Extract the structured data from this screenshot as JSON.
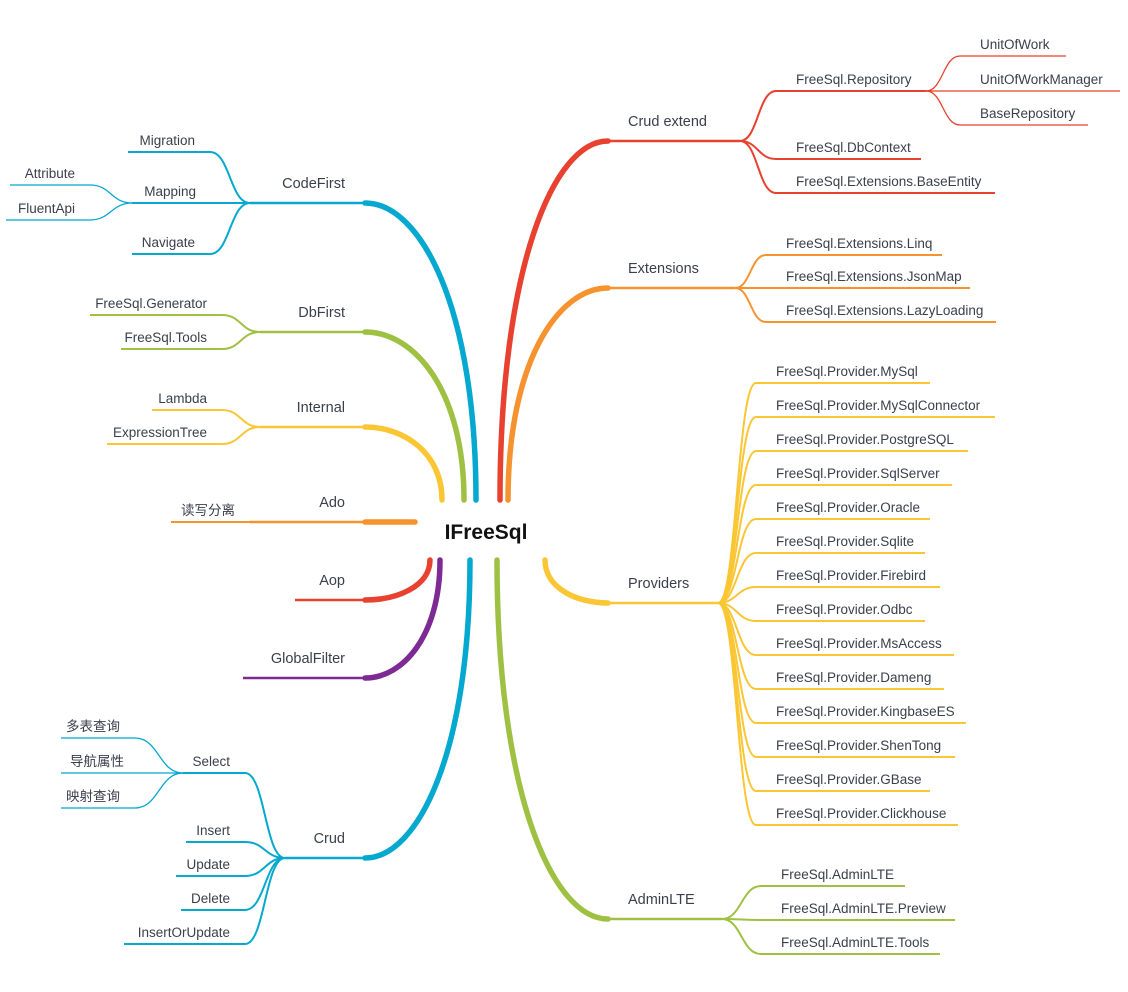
{
  "center": {
    "label": "IFreeSql"
  },
  "right": [
    {
      "label": "Crud extend",
      "color": "#e8412f",
      "children": [
        {
          "label": "FreeSql.Repository",
          "children": [
            {
              "label": "UnitOfWork"
            },
            {
              "label": "UnitOfWorkManager"
            },
            {
              "label": "BaseRepository"
            }
          ]
        },
        {
          "label": "FreeSql.DbContext"
        },
        {
          "label": "FreeSql.Extensions.BaseEntity"
        }
      ]
    },
    {
      "label": "Extensions",
      "color": "#f7932f",
      "children": [
        {
          "label": "FreeSql.Extensions.Linq"
        },
        {
          "label": "FreeSql.Extensions.JsonMap"
        },
        {
          "label": "FreeSql.Extensions.LazyLoading"
        }
      ]
    },
    {
      "label": "Providers",
      "color": "#fbc634",
      "children": [
        {
          "label": "FreeSql.Provider.MySql"
        },
        {
          "label": "FreeSql.Provider.MySqlConnector"
        },
        {
          "label": "FreeSql.Provider.PostgreSQL"
        },
        {
          "label": "FreeSql.Provider.SqlServer"
        },
        {
          "label": "FreeSql.Provider.Oracle"
        },
        {
          "label": "FreeSql.Provider.Sqlite"
        },
        {
          "label": "FreeSql.Provider.Firebird"
        },
        {
          "label": "FreeSql.Provider.Odbc"
        },
        {
          "label": "FreeSql.Provider.MsAccess"
        },
        {
          "label": "FreeSql.Provider.Dameng"
        },
        {
          "label": "FreeSql.Provider.KingbaseES"
        },
        {
          "label": "FreeSql.Provider.ShenTong"
        },
        {
          "label": "FreeSql.Provider.GBase"
        },
        {
          "label": "FreeSql.Provider.Clickhouse"
        }
      ]
    },
    {
      "label": "AdminLTE",
      "color": "#9fc143",
      "children": [
        {
          "label": "FreeSql.AdminLTE"
        },
        {
          "label": "FreeSql.AdminLTE.Preview"
        },
        {
          "label": "FreeSql.AdminLTE.Tools"
        }
      ]
    }
  ],
  "left": [
    {
      "label": "CodeFirst",
      "color": "#05a8cf",
      "children": [
        {
          "label": "Migration"
        },
        {
          "label": "Mapping",
          "children": [
            {
              "label": "Attribute"
            },
            {
              "label": "FluentApi"
            }
          ]
        },
        {
          "label": "Navigate"
        }
      ]
    },
    {
      "label": "DbFirst",
      "color": "#9fc143",
      "children": [
        {
          "label": "FreeSql.Generator"
        },
        {
          "label": "FreeSql.Tools"
        }
      ]
    },
    {
      "label": "Internal",
      "color": "#fbc634",
      "children": [
        {
          "label": "Lambda"
        },
        {
          "label": "ExpressionTree"
        }
      ]
    },
    {
      "label": "Ado",
      "color": "#f7932f",
      "children": [
        {
          "label": "读写分离"
        }
      ]
    },
    {
      "label": "Aop",
      "color": "#e8412f"
    },
    {
      "label": "GlobalFilter",
      "color": "#7d2a94"
    },
    {
      "label": "Crud",
      "color": "#05a8cf",
      "children": [
        {
          "label": "Select",
          "children": [
            {
              "label": "多表查询"
            },
            {
              "label": "导航属性"
            },
            {
              "label": "映射查询"
            }
          ]
        },
        {
          "label": "Insert"
        },
        {
          "label": "Update"
        },
        {
          "label": "Delete"
        },
        {
          "label": "InsertOrUpdate"
        }
      ]
    }
  ]
}
